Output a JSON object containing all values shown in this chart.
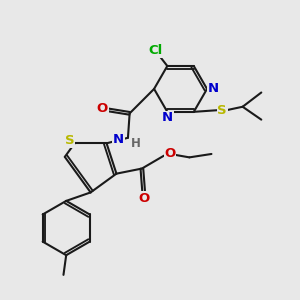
{
  "bg_color": "#e8e8e8",
  "bond_color": "#1a1a1a",
  "bond_width": 1.5,
  "dbo": 0.08,
  "atom_colors": {
    "N": "#0000cc",
    "O": "#cc0000",
    "S": "#b8b800",
    "Cl": "#00aa00",
    "H": "#666666",
    "C": "#1a1a1a"
  },
  "font_size": 8.5,
  "figsize": [
    3.0,
    3.0
  ],
  "dpi": 100
}
